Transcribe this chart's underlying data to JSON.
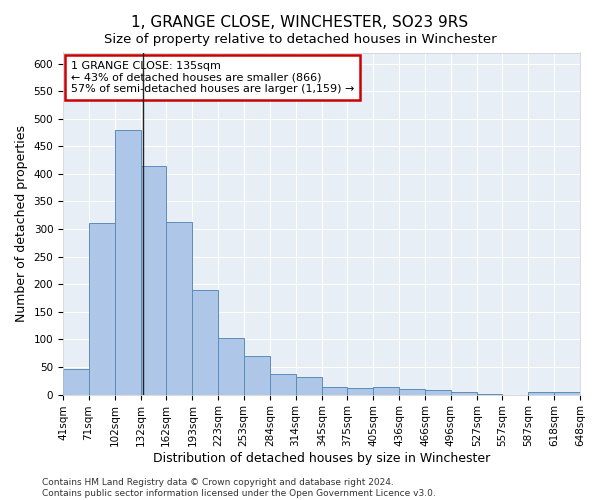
{
  "title": "1, GRANGE CLOSE, WINCHESTER, SO23 9RS",
  "subtitle": "Size of property relative to detached houses in Winchester",
  "xlabel": "Distribution of detached houses by size in Winchester",
  "ylabel": "Number of detached properties",
  "bar_edges": [
    41,
    71,
    102,
    132,
    162,
    193,
    223,
    253,
    284,
    314,
    345,
    375,
    405,
    436,
    466,
    496,
    527,
    557,
    587,
    618,
    648
  ],
  "bar_heights": [
    46,
    311,
    480,
    415,
    313,
    190,
    103,
    70,
    37,
    31,
    14,
    12,
    14,
    10,
    8,
    5,
    1,
    0,
    5,
    5
  ],
  "bar_color": "#aec6e8",
  "bar_edge_color": "#5b8db8",
  "bg_color": "#e8eef5",
  "grid_color": "#ffffff",
  "property_size": 135,
  "annotation_title": "1 GRANGE CLOSE: 135sqm",
  "annotation_line1": "← 43% of detached houses are smaller (866)",
  "annotation_line2": "57% of semi-detached houses are larger (1,159) →",
  "annotation_box_color": "#cc0000",
  "vline_x": 135,
  "ylim": [
    0,
    620
  ],
  "yticks": [
    0,
    50,
    100,
    150,
    200,
    250,
    300,
    350,
    400,
    450,
    500,
    550,
    600
  ],
  "footer1": "Contains HM Land Registry data © Crown copyright and database right 2024.",
  "footer2": "Contains public sector information licensed under the Open Government Licence v3.0.",
  "title_fontsize": 11,
  "subtitle_fontsize": 9.5,
  "axis_label_fontsize": 9,
  "tick_fontsize": 7.5,
  "annotation_fontsize": 8,
  "footer_fontsize": 6.5
}
